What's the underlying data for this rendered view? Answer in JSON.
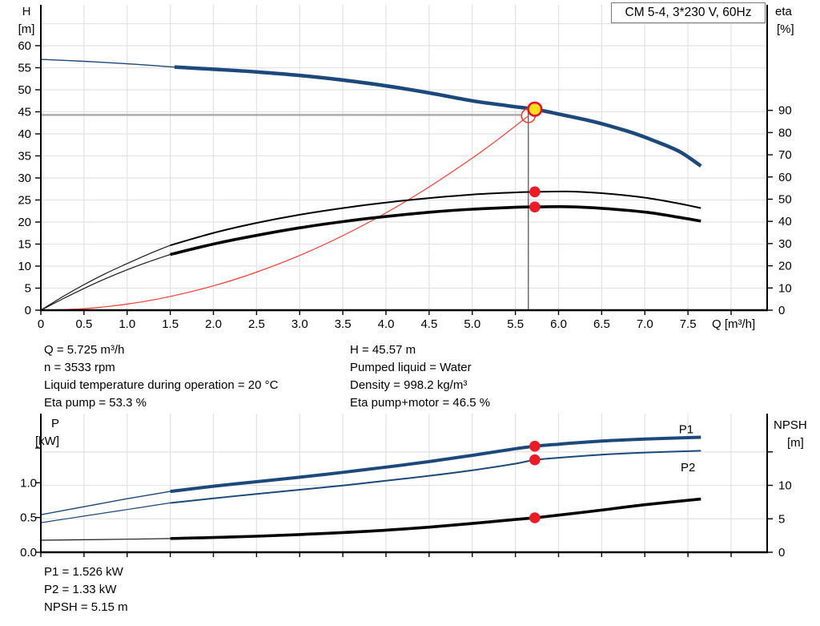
{
  "header": {
    "title_box": "CM 5-4, 3*230 V, 60Hz"
  },
  "operating_info": {
    "left": [
      "Q = 5.725 m³/h",
      "n = 3533 rpm",
      "Liquid temperature during operation = 20 °C",
      "Eta pump = 53.3 %"
    ],
    "right": [
      "H = 45.57 m",
      "Pumped liquid = Water",
      "Density = 998.2 kg/m³",
      "Eta pump+motor = 46.5 %"
    ]
  },
  "result_info": [
    "P1 = 1.526 kW",
    "P2 = 1.33 kW",
    "NPSH = 5.15 m"
  ],
  "duty_point": {
    "Q": "5.725 m³/h",
    "H": "45.57 m",
    "n": "3533 rpm",
    "eta_pump": "53.3 %",
    "eta_pump_motor": "46.5 %",
    "P1": "1.526 kW",
    "P2": "1.33 kW",
    "NPSH": "5.15 m",
    "pumped_liquid": "Water",
    "density": "998.2 kg/m³",
    "liquid_temperature": "20 °C"
  },
  "colors": {
    "curve_blue": "#1b497d",
    "curve_black": "#000000",
    "system_red": "#ff3a30",
    "dot_red": "#ed1c24",
    "duty_yellow": "#ffe11a",
    "duty_ring": "#e8112d",
    "grid": "#e2e2e2",
    "crosshair_h": "#acacac",
    "crosshair_v": "#4d4d4d",
    "axis": "#000000"
  },
  "chart_data": [
    {
      "type": "line",
      "name": "hq-eta-chart",
      "title": "CM 5-4, 3*230 V, 60Hz",
      "x_axis": {
        "title": "Q [m³/h]",
        "tick_start": 0,
        "tick_step": 0.5,
        "show_labels": true,
        "tick_labels": [
          "0",
          "0.5",
          "1.0",
          "1.5",
          "2.0",
          "2.5",
          "3.0",
          "3.5",
          "4.0",
          "4.5",
          "5.0",
          "5.5",
          "6.0",
          "6.5",
          "7.0",
          "7.5"
        ],
        "extra_ticks": [
          8
        ]
      },
      "y_left": {
        "title": "H",
        "unit": "[m]",
        "axis": "H",
        "tick_start": 0,
        "tick_step": 5,
        "tick_labels": [
          "0",
          "5",
          "10",
          "15",
          "20",
          "25",
          "30",
          "35",
          "40",
          "45",
          "50",
          "55",
          "60"
        ],
        "extra_ticks": []
      },
      "y_right": {
        "title": "eta",
        "unit": "[%]",
        "axis": "eta",
        "tick_start": 0,
        "tick_step": 10,
        "tick_labels": [
          "0",
          "10",
          "20",
          "30",
          "40",
          "50",
          "60",
          "70",
          "80",
          "90"
        ],
        "extra_ticks": []
      },
      "x_grid": {
        "from": 0.5,
        "to": 8,
        "step": 0.5
      },
      "y_grid": {
        "axis": "H",
        "from": 5,
        "to": 65,
        "step": 5
      },
      "crosshair": {
        "h_value": 44.3,
        "h_to_q": 5.58,
        "q": 5.65,
        "v_top_value": 44.9
      },
      "series": [
        {
          "name": "system-curve",
          "axis": "H",
          "color": "#ff3a30",
          "width": 1.2,
          "points": [
            [
              0,
              0
            ],
            [
              0.5,
              0.35
            ],
            [
              1,
              1.38
            ],
            [
              1.5,
              3.11
            ],
            [
              2,
              5.52
            ],
            [
              2.5,
              8.63
            ],
            [
              3,
              12.42
            ],
            [
              3.5,
              16.91
            ],
            [
              4,
              22.08
            ],
            [
              4.5,
              27.95
            ],
            [
              5,
              34.5
            ],
            [
              5.3,
              38.77
            ],
            [
              5.65,
              44.07
            ]
          ]
        },
        {
          "name": "eta-pump-curve-ext",
          "axis": "eta",
          "color": "#1a1a1a",
          "width": 1.2,
          "points": [
            [
              0,
              0
            ],
            [
              0.25,
              6
            ],
            [
              0.5,
              11.5
            ],
            [
              0.75,
              16.5
            ],
            [
              1,
              21
            ],
            [
              1.25,
              25.3
            ],
            [
              1.5,
              29.2
            ]
          ]
        },
        {
          "name": "eta-pump-curve",
          "axis": "eta",
          "color": "#000000",
          "width": 2,
          "points": [
            [
              1.5,
              29.2
            ],
            [
              2,
              34.8
            ],
            [
              2.5,
              39.3
            ],
            [
              3,
              43
            ],
            [
              3.5,
              46
            ],
            [
              4,
              48.5
            ],
            [
              4.5,
              50.5
            ],
            [
              5,
              52.1
            ],
            [
              5.5,
              53.05
            ],
            [
              5.725,
              53.3
            ],
            [
              6.1,
              53.45
            ],
            [
              6.5,
              52.7
            ],
            [
              7,
              50.7
            ],
            [
              7.4,
              48
            ],
            [
              7.65,
              46
            ]
          ]
        },
        {
          "name": "eta-pump-motor-curve-ext",
          "axis": "eta",
          "color": "#1a1a1a",
          "width": 1.2,
          "points": [
            [
              0,
              0
            ],
            [
              0.25,
              5
            ],
            [
              0.5,
              9.8
            ],
            [
              0.75,
              14.2
            ],
            [
              1,
              18.2
            ],
            [
              1.25,
              21.8
            ],
            [
              1.5,
              25.1
            ]
          ]
        },
        {
          "name": "eta-pump-motor-curve",
          "axis": "eta",
          "color": "#000000",
          "width": 3.6,
          "points": [
            [
              1.5,
              25.1
            ],
            [
              2,
              29.8
            ],
            [
              2.5,
              33.7
            ],
            [
              3,
              37.1
            ],
            [
              3.5,
              39.9
            ],
            [
              4,
              42.2
            ],
            [
              4.5,
              44.1
            ],
            [
              5,
              45.5
            ],
            [
              5.5,
              46.35
            ],
            [
              5.725,
              46.5
            ],
            [
              6.1,
              46.6
            ],
            [
              6.5,
              45.9
            ],
            [
              7,
              44.2
            ],
            [
              7.4,
              41.8
            ],
            [
              7.65,
              40.1
            ]
          ]
        },
        {
          "name": "pump-curve-ext",
          "axis": "H",
          "color": "#1b497d",
          "width": 1.4,
          "points": [
            [
              0,
              56.9
            ],
            [
              0.5,
              56.45
            ],
            [
              1,
              55.9
            ],
            [
              1.55,
              55.15
            ]
          ]
        },
        {
          "name": "pump-curve",
          "axis": "H",
          "color": "#1b497d",
          "width": 4.5,
          "points": [
            [
              1.55,
              55.15
            ],
            [
              2,
              54.65
            ],
            [
              2.5,
              54.05
            ],
            [
              3,
              53.25
            ],
            [
              3.5,
              52.2
            ],
            [
              4,
              50.9
            ],
            [
              4.5,
              49.3
            ],
            [
              5,
              47.5
            ],
            [
              5.4,
              46.4
            ],
            [
              5.725,
              45.57
            ],
            [
              6,
              44.5
            ],
            [
              6.4,
              42.8
            ],
            [
              6.8,
              40.6
            ],
            [
              7.1,
              38.5
            ],
            [
              7.4,
              36
            ],
            [
              7.65,
              32.7
            ]
          ]
        }
      ],
      "markers": [
        {
          "type": "open-circle",
          "name": "system-duty-marker",
          "axis": "H",
          "x": 5.65,
          "y": 44.1,
          "r": 8.5,
          "stroke": "#ff3a30"
        },
        {
          "type": "duty-point",
          "name": "duty-point",
          "axis": "H",
          "x": 5.725,
          "y": 45.6,
          "r": 8.3,
          "fill": "#ffe11a",
          "stroke": "#e8112d"
        },
        {
          "type": "dot",
          "name": "eta-pump-duty-dot",
          "axis": "eta",
          "x": 5.725,
          "y": 53.3,
          "r": 6.8,
          "fill": "#ed1c24"
        },
        {
          "type": "dot",
          "name": "eta-pump-motor-duty-dot",
          "axis": "eta",
          "x": 5.725,
          "y": 46.5,
          "r": 6.8,
          "fill": "#ed1c24"
        }
      ],
      "curve_labels": []
    },
    {
      "type": "line",
      "name": "power-npsh-chart",
      "title": "",
      "x_axis": {
        "title": "",
        "tick_start": 0,
        "tick_step": 0.5,
        "show_labels": false,
        "tick_labels": [
          "",
          "",
          "",
          "",
          "",
          "",
          "",
          "",
          "",
          "",
          "",
          "",
          "",
          "",
          "",
          ""
        ],
        "extra_ticks": [
          8
        ]
      },
      "y_left": {
        "title": "P",
        "unit": "[kW]",
        "axis": "P",
        "tick_start": 0,
        "tick_step": 0.5,
        "tick_labels": [
          "0.0",
          "0.5",
          "1.0"
        ],
        "extra_ticks": [
          1.5
        ]
      },
      "y_right": {
        "title": "NPSH",
        "unit": "[m]",
        "axis": "NPSH",
        "tick_start": 0,
        "tick_step": 5,
        "tick_labels": [
          "0",
          "5",
          "10"
        ],
        "extra_ticks": [
          15
        ]
      },
      "x_grid": {
        "from": 0.5,
        "to": 8,
        "step": 0.5
      },
      "y_grid": {
        "axis": "NPSH",
        "values": [
          5,
          10,
          15
        ]
      },
      "crosshair": null,
      "series": [
        {
          "name": "npsh-curve-ext",
          "axis": "NPSH",
          "color": "#1a1a1a",
          "width": 1.2,
          "points": [
            [
              0,
              1.8
            ],
            [
              0.5,
              1.87
            ],
            [
              1,
              1.95
            ],
            [
              1.5,
              2.05
            ]
          ]
        },
        {
          "name": "npsh-curve",
          "axis": "NPSH",
          "color": "#000000",
          "width": 3.6,
          "points": [
            [
              1.5,
              2.05
            ],
            [
              2,
              2.2
            ],
            [
              2.5,
              2.4
            ],
            [
              3,
              2.65
            ],
            [
              3.5,
              2.95
            ],
            [
              4,
              3.3
            ],
            [
              4.5,
              3.75
            ],
            [
              5,
              4.3
            ],
            [
              5.5,
              4.9
            ],
            [
              5.725,
              5.15
            ],
            [
              6,
              5.55
            ],
            [
              6.5,
              6.3
            ],
            [
              7,
              7.1
            ],
            [
              7.65,
              7.95
            ]
          ]
        },
        {
          "name": "p2-curve-ext",
          "axis": "P",
          "color": "#1b497d",
          "width": 1.2,
          "points": [
            [
              0,
              0.425
            ],
            [
              0.5,
              0.52
            ],
            [
              1,
              0.615
            ],
            [
              1.5,
              0.71
            ]
          ]
        },
        {
          "name": "p2-curve",
          "axis": "P",
          "color": "#1b497d",
          "width": 2,
          "points": [
            [
              1.5,
              0.71
            ],
            [
              2,
              0.775
            ],
            [
              2.5,
              0.84
            ],
            [
              3,
              0.9
            ],
            [
              3.5,
              0.96
            ],
            [
              4,
              1.03
            ],
            [
              4.5,
              1.1
            ],
            [
              5,
              1.18
            ],
            [
              5.5,
              1.275
            ],
            [
              5.725,
              1.33
            ],
            [
              6,
              1.36
            ],
            [
              6.5,
              1.405
            ],
            [
              7,
              1.435
            ],
            [
              7.65,
              1.46
            ]
          ]
        },
        {
          "name": "p1-curve-ext",
          "axis": "P",
          "color": "#1b497d",
          "width": 1.4,
          "points": [
            [
              0,
              0.54
            ],
            [
              0.5,
              0.655
            ],
            [
              1,
              0.77
            ],
            [
              1.5,
              0.875
            ]
          ]
        },
        {
          "name": "p1-curve",
          "axis": "P",
          "color": "#1b497d",
          "width": 4,
          "points": [
            [
              1.5,
              0.875
            ],
            [
              2,
              0.95
            ],
            [
              2.5,
              1.015
            ],
            [
              3,
              1.08
            ],
            [
              3.5,
              1.15
            ],
            [
              4,
              1.225
            ],
            [
              4.5,
              1.305
            ],
            [
              5,
              1.395
            ],
            [
              5.5,
              1.49
            ],
            [
              5.725,
              1.526
            ],
            [
              6,
              1.555
            ],
            [
              6.5,
              1.6
            ],
            [
              7,
              1.63
            ],
            [
              7.65,
              1.655
            ]
          ]
        }
      ],
      "markers": [
        {
          "type": "dot",
          "name": "p1-duty-dot",
          "axis": "P",
          "x": 5.725,
          "y": 1.526,
          "r": 6.8,
          "fill": "#ed1c24"
        },
        {
          "type": "dot",
          "name": "p2-duty-dot",
          "axis": "P",
          "x": 5.725,
          "y": 1.33,
          "r": 6.8,
          "fill": "#ed1c24"
        },
        {
          "type": "dot",
          "name": "npsh-duty-dot",
          "axis": "NPSH",
          "x": 5.725,
          "y": 5.15,
          "r": 6.8,
          "fill": "#ed1c24"
        }
      ],
      "curve_labels": [
        {
          "text": "P1",
          "axis": "P",
          "x": 7.48,
          "y": 1.77
        },
        {
          "text": "P2",
          "axis": "P",
          "x": 7.5,
          "y": 1.22
        }
      ]
    }
  ]
}
